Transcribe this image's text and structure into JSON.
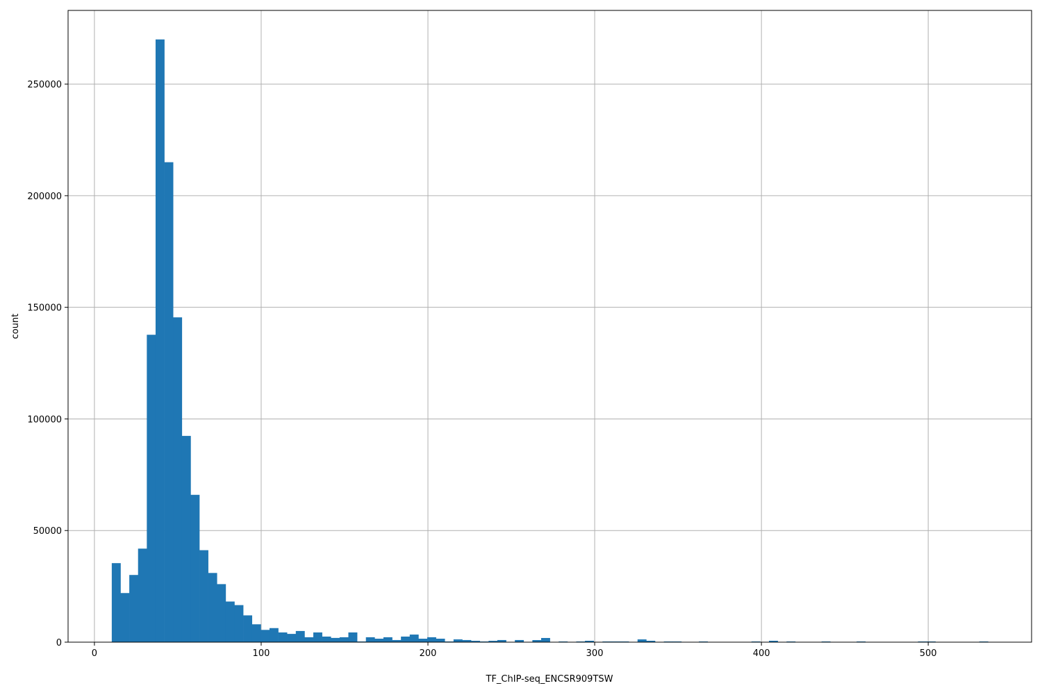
{
  "chart_data": {
    "type": "bar",
    "subtype": "histogram",
    "title": "",
    "xlabel": "TF_ChIP-seq_ENCSR909TSW",
    "ylabel": "count",
    "bin_range": [
      10.4,
      535.9
    ],
    "bin_count": 100,
    "xlim": [
      -15.8,
      562
    ],
    "ylim": [
      0,
      283000
    ],
    "xticks": [
      0,
      100,
      200,
      300,
      400,
      500
    ],
    "yticks": [
      0,
      50000,
      100000,
      150000,
      200000,
      250000
    ],
    "grid": true,
    "bar_color": "#1f77b4",
    "grid_color": "#b0b0b0",
    "values": [
      35400,
      22000,
      30100,
      41900,
      137700,
      270000,
      215000,
      145500,
      92400,
      66000,
      41200,
      31000,
      26000,
      18200,
      16600,
      12000,
      8000,
      5500,
      6300,
      4350,
      3700,
      5000,
      2200,
      4350,
      2500,
      1900,
      2200,
      4350,
      300,
      2200,
      1550,
      2200,
      950,
      2500,
      3400,
      1550,
      2200,
      1550,
      300,
      1250,
      950,
      600,
      300,
      600,
      950,
      0,
      950,
      0,
      930,
      1870,
      0,
      300,
      0,
      300,
      620,
      0,
      300,
      300,
      300,
      0,
      1240,
      620,
      0,
      300,
      300,
      0,
      0,
      300,
      0,
      0,
      0,
      0,
      0,
      300,
      0,
      620,
      0,
      300,
      0,
      0,
      0,
      300,
      0,
      0,
      0,
      300,
      0,
      0,
      0,
      0,
      0,
      0,
      300,
      300,
      0,
      0,
      0,
      0,
      0,
      300
    ]
  }
}
